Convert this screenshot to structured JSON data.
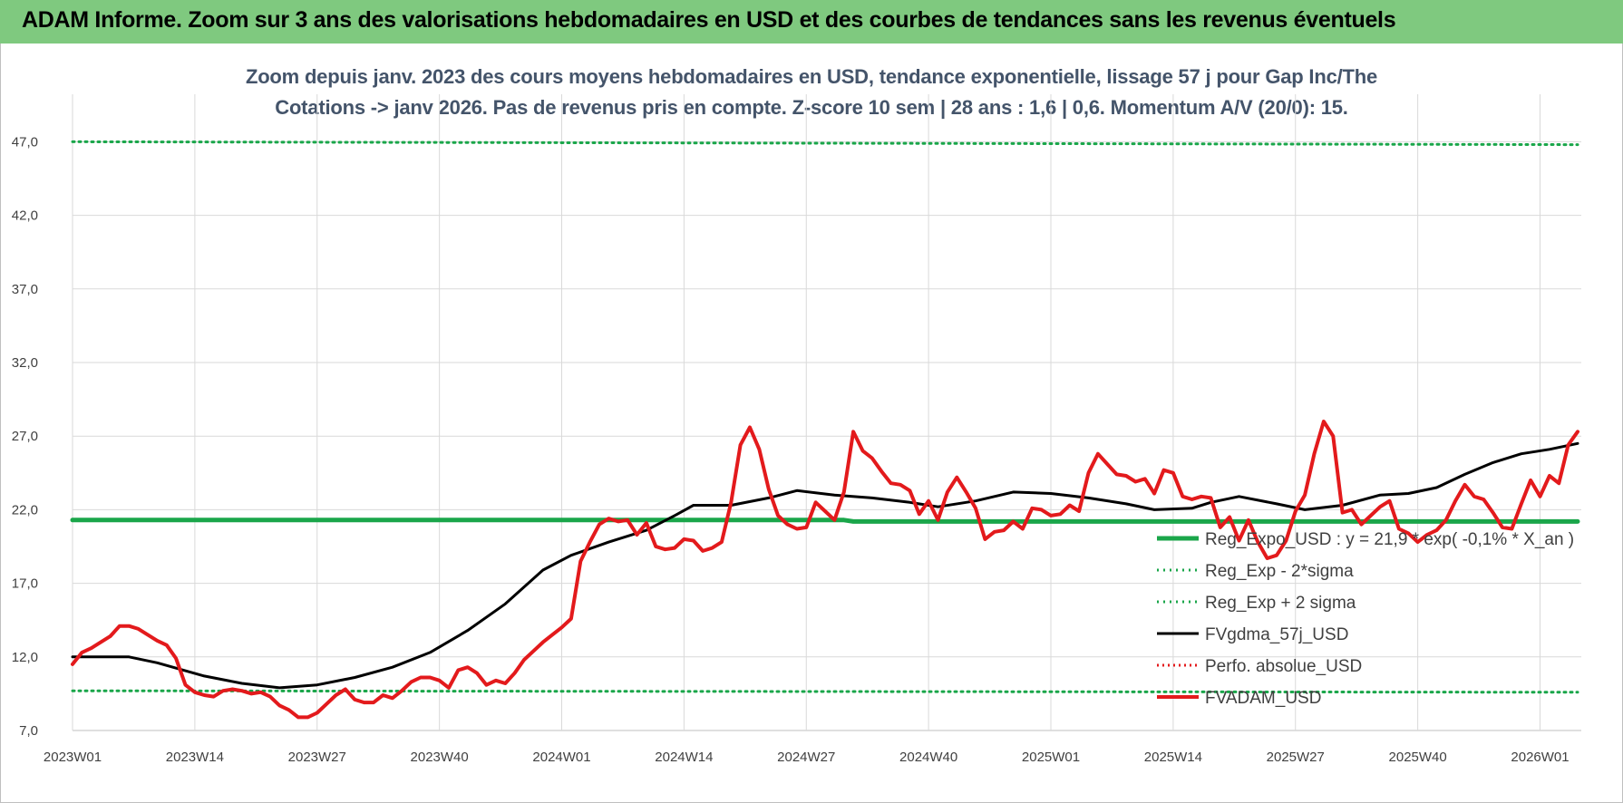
{
  "banner": {
    "title": "ADAM Informe. Zoom sur 3 ans des valorisations hebdomadaires en USD et des courbes de tendances sans les revenus éventuels"
  },
  "colors": {
    "banner": "#7fc97f",
    "trend": "#1aa64a",
    "sigma": "#1aa64a",
    "moving_average": "#000000",
    "performance": "#e31a1c",
    "price": "#e31a1c",
    "grid": "#d9d9d9",
    "title": "#44546a"
  },
  "chart_data": {
    "type": "line",
    "title_line1": "Zoom depuis janv. 2023 des cours moyens hebdomadaires en USD, tendance exponentielle, lissage 57 j pour Gap Inc/The",
    "title_line2": "Cotations -> janv 2026. Pas de revenus pris en compte. Z-score 10 sem | 28 ans : 1,6 | 0,6. Momentum A/V (20/0): 15.",
    "xlabel": "",
    "ylabel": "",
    "ylim": [
      7,
      50
    ],
    "yticks": [
      "7,0",
      "12,0",
      "17,0",
      "22,0",
      "27,0",
      "32,0",
      "37,0",
      "42,0",
      "47,0"
    ],
    "ytick_values": [
      7,
      12,
      17,
      22,
      27,
      32,
      37,
      42,
      47
    ],
    "xticks": [
      "2023W01",
      "2023W14",
      "2023W27",
      "2023W40",
      "2024W01",
      "2024W14",
      "2024W27",
      "2024W40",
      "2025W01",
      "2025W14",
      "2025W27",
      "2025W40",
      "2026W01"
    ],
    "xtick_index": [
      0,
      13,
      26,
      39,
      52,
      65,
      78,
      91,
      104,
      117,
      130,
      143,
      156
    ],
    "num_weeks": 161,
    "grid": true,
    "legend_position": "bottom-right",
    "series": [
      {
        "name": "Reg_Expo_USD : y = 21,9 * exp( -0,1% * X_an )",
        "style": "solid-thick",
        "points": [
          [
            0,
            21.3
          ],
          [
            82,
            21.3
          ],
          [
            83,
            21.2
          ],
          [
            160,
            21.2
          ]
        ]
      },
      {
        "name": "Reg_Exp - 2*sigma",
        "style": "dotted",
        "points": [
          [
            0,
            9.7
          ],
          [
            160,
            9.6
          ]
        ]
      },
      {
        "name": "Reg_Exp + 2 sigma",
        "style": "dotted",
        "points": [
          [
            0,
            47.0
          ],
          [
            160,
            46.8
          ]
        ]
      },
      {
        "name": "FVgdma_57j_USD",
        "style": "solid",
        "points": [
          [
            0,
            12.0
          ],
          [
            6,
            12.0
          ],
          [
            9,
            11.6
          ],
          [
            14,
            10.7
          ],
          [
            18,
            10.2
          ],
          [
            22,
            9.9
          ],
          [
            26,
            10.1
          ],
          [
            30,
            10.6
          ],
          [
            34,
            11.3
          ],
          [
            38,
            12.3
          ],
          [
            42,
            13.8
          ],
          [
            46,
            15.6
          ],
          [
            50,
            17.9
          ],
          [
            53,
            18.9
          ],
          [
            57,
            19.8
          ],
          [
            61,
            20.6
          ],
          [
            64,
            21.6
          ],
          [
            66,
            22.3
          ],
          [
            70,
            22.3
          ],
          [
            74,
            22.8
          ],
          [
            77,
            23.3
          ],
          [
            81,
            23.0
          ],
          [
            85,
            22.8
          ],
          [
            89,
            22.5
          ],
          [
            92,
            22.2
          ],
          [
            96,
            22.6
          ],
          [
            100,
            23.2
          ],
          [
            104,
            23.1
          ],
          [
            108,
            22.8
          ],
          [
            112,
            22.4
          ],
          [
            115,
            22.0
          ],
          [
            119,
            22.1
          ],
          [
            121,
            22.5
          ],
          [
            124,
            22.9
          ],
          [
            128,
            22.4
          ],
          [
            131,
            22.0
          ],
          [
            135,
            22.3
          ],
          [
            139,
            23.0
          ],
          [
            142,
            23.1
          ],
          [
            145,
            23.5
          ],
          [
            148,
            24.4
          ],
          [
            151,
            25.2
          ],
          [
            154,
            25.8
          ],
          [
            157,
            26.1
          ],
          [
            160,
            26.5
          ]
        ]
      },
      {
        "name": "Perfo. absolue_USD",
        "style": "dotted",
        "points": []
      },
      {
        "name": "FVADAM_USD",
        "style": "solid-thick",
        "points": [
          [
            0,
            11.5
          ],
          [
            1,
            12.3
          ],
          [
            2,
            12.6
          ],
          [
            3,
            13.0
          ],
          [
            4,
            13.4
          ],
          [
            5,
            14.1
          ],
          [
            6,
            14.1
          ],
          [
            7,
            13.9
          ],
          [
            8,
            13.5
          ],
          [
            9,
            13.1
          ],
          [
            10,
            12.8
          ],
          [
            11,
            11.9
          ],
          [
            12,
            10.1
          ],
          [
            13,
            9.6
          ],
          [
            14,
            9.4
          ],
          [
            15,
            9.3
          ],
          [
            16,
            9.7
          ],
          [
            17,
            9.8
          ],
          [
            18,
            9.7
          ],
          [
            19,
            9.5
          ],
          [
            20,
            9.6
          ],
          [
            21,
            9.3
          ],
          [
            22,
            8.7
          ],
          [
            23,
            8.4
          ],
          [
            24,
            7.9
          ],
          [
            25,
            7.9
          ],
          [
            26,
            8.2
          ],
          [
            27,
            8.8
          ],
          [
            28,
            9.4
          ],
          [
            29,
            9.8
          ],
          [
            30,
            9.1
          ],
          [
            31,
            8.9
          ],
          [
            32,
            8.9
          ],
          [
            33,
            9.4
          ],
          [
            34,
            9.2
          ],
          [
            35,
            9.7
          ],
          [
            36,
            10.3
          ],
          [
            37,
            10.6
          ],
          [
            38,
            10.6
          ],
          [
            39,
            10.4
          ],
          [
            40,
            9.9
          ],
          [
            41,
            11.1
          ],
          [
            42,
            11.3
          ],
          [
            43,
            10.9
          ],
          [
            44,
            10.1
          ],
          [
            45,
            10.4
          ],
          [
            46,
            10.2
          ],
          [
            47,
            10.9
          ],
          [
            48,
            11.8
          ],
          [
            49,
            12.4
          ],
          [
            50,
            13.0
          ],
          [
            51,
            13.5
          ],
          [
            52,
            14.0
          ],
          [
            53,
            14.6
          ],
          [
            54,
            18.5
          ],
          [
            55,
            19.8
          ],
          [
            56,
            21.0
          ],
          [
            57,
            21.4
          ],
          [
            58,
            21.2
          ],
          [
            59,
            21.3
          ],
          [
            60,
            20.3
          ],
          [
            61,
            21.1
          ],
          [
            62,
            19.5
          ],
          [
            63,
            19.3
          ],
          [
            64,
            19.4
          ],
          [
            65,
            20.0
          ],
          [
            66,
            19.9
          ],
          [
            67,
            19.2
          ],
          [
            68,
            19.4
          ],
          [
            69,
            19.8
          ],
          [
            70,
            22.5
          ],
          [
            71,
            26.4
          ],
          [
            72,
            27.6
          ],
          [
            73,
            26.1
          ],
          [
            74,
            23.4
          ],
          [
            75,
            21.6
          ],
          [
            76,
            21.0
          ],
          [
            77,
            20.7
          ],
          [
            78,
            20.8
          ],
          [
            79,
            22.5
          ],
          [
            80,
            21.9
          ],
          [
            81,
            21.3
          ],
          [
            82,
            23.2
          ],
          [
            83,
            27.3
          ],
          [
            84,
            26.0
          ],
          [
            85,
            25.5
          ],
          [
            86,
            24.6
          ],
          [
            87,
            23.8
          ],
          [
            88,
            23.7
          ],
          [
            89,
            23.3
          ],
          [
            90,
            21.7
          ],
          [
            91,
            22.6
          ],
          [
            92,
            21.3
          ],
          [
            93,
            23.2
          ],
          [
            94,
            24.2
          ],
          [
            95,
            23.2
          ],
          [
            96,
            22.1
          ],
          [
            97,
            20.0
          ],
          [
            98,
            20.5
          ],
          [
            99,
            20.6
          ],
          [
            100,
            21.2
          ],
          [
            101,
            20.7
          ],
          [
            102,
            22.1
          ],
          [
            103,
            22.0
          ],
          [
            104,
            21.6
          ],
          [
            105,
            21.7
          ],
          [
            106,
            22.3
          ],
          [
            107,
            21.9
          ],
          [
            108,
            24.5
          ],
          [
            109,
            25.8
          ],
          [
            110,
            25.1
          ],
          [
            111,
            24.4
          ],
          [
            112,
            24.3
          ],
          [
            113,
            23.9
          ],
          [
            114,
            24.1
          ],
          [
            115,
            23.1
          ],
          [
            116,
            24.7
          ],
          [
            117,
            24.5
          ],
          [
            118,
            22.9
          ],
          [
            119,
            22.7
          ],
          [
            120,
            22.9
          ],
          [
            121,
            22.8
          ],
          [
            122,
            20.8
          ],
          [
            123,
            21.5
          ],
          [
            124,
            19.9
          ],
          [
            125,
            21.3
          ],
          [
            126,
            19.8
          ],
          [
            127,
            18.7
          ],
          [
            128,
            18.9
          ],
          [
            129,
            19.9
          ],
          [
            130,
            21.9
          ],
          [
            131,
            23.0
          ],
          [
            132,
            25.8
          ],
          [
            133,
            28.0
          ],
          [
            134,
            27.0
          ],
          [
            135,
            21.8
          ],
          [
            136,
            22.0
          ],
          [
            137,
            21.0
          ],
          [
            138,
            21.6
          ],
          [
            139,
            22.2
          ],
          [
            140,
            22.6
          ],
          [
            141,
            20.7
          ],
          [
            142,
            20.4
          ],
          [
            143,
            19.8
          ],
          [
            144,
            20.3
          ],
          [
            145,
            20.6
          ],
          [
            146,
            21.3
          ],
          [
            147,
            22.6
          ],
          [
            148,
            23.7
          ],
          [
            149,
            22.9
          ],
          [
            150,
            22.7
          ],
          [
            151,
            21.8
          ],
          [
            152,
            20.8
          ],
          [
            153,
            20.7
          ],
          [
            154,
            22.4
          ],
          [
            155,
            24.0
          ],
          [
            156,
            22.9
          ],
          [
            157,
            24.3
          ],
          [
            158,
            23.8
          ],
          [
            159,
            26.4
          ],
          [
            160,
            27.3
          ]
        ]
      }
    ]
  }
}
